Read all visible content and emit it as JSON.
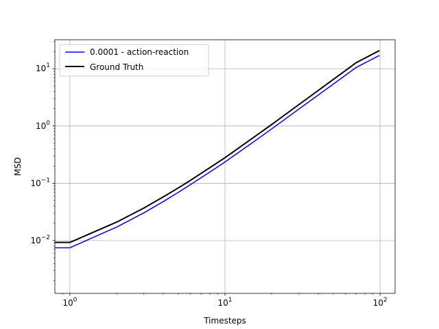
{
  "chart_data": {
    "type": "line",
    "xscale": "log",
    "yscale": "log",
    "xlabel": "Timesteps",
    "ylabel": "MSD",
    "xlim": [
      0.8,
      125
    ],
    "ylim": [
      0.0012,
      32
    ],
    "grid": true,
    "legend_position": "top-left",
    "x_ticks": [
      {
        "value": 1,
        "base": "10",
        "exp": "0"
      },
      {
        "value": 10,
        "base": "10",
        "exp": "1"
      },
      {
        "value": 100,
        "base": "10",
        "exp": "2"
      }
    ],
    "y_ticks": [
      {
        "value": 0.01,
        "base": "10",
        "exp": "−2"
      },
      {
        "value": 0.1,
        "base": "10",
        "exp": "−1"
      },
      {
        "value": 1,
        "base": "10",
        "exp": "0"
      },
      {
        "value": 10,
        "base": "10",
        "exp": "1"
      }
    ],
    "x": [
      0,
      1,
      2,
      3,
      4,
      5,
      6,
      8,
      10,
      15,
      20,
      30,
      50,
      70,
      99
    ],
    "series": [
      {
        "name": "0.0001 - action-reaction",
        "color": "#0000ff",
        "values": [
          0.0075,
          0.0075,
          0.0172,
          0.0305,
          0.048,
          0.0695,
          0.095,
          0.158,
          0.235,
          0.51,
          0.89,
          1.98,
          5.4,
          10.5,
          17.0
        ]
      },
      {
        "name": "Ground Truth",
        "color": "#000000",
        "values": [
          0.0093,
          0.0093,
          0.021,
          0.037,
          0.058,
          0.083,
          0.113,
          0.188,
          0.28,
          0.61,
          1.06,
          2.37,
          6.5,
          12.7,
          20.7
        ]
      }
    ]
  }
}
